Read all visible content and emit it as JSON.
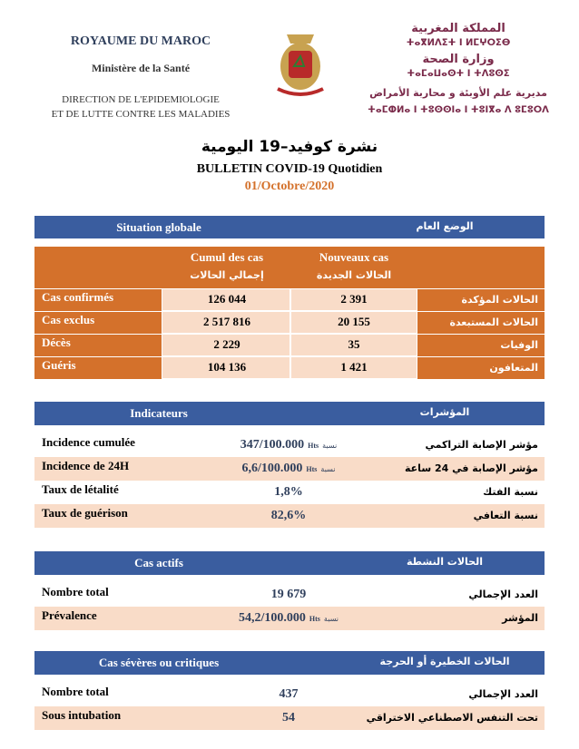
{
  "header": {
    "left": [
      "ROYAUME DU MAROC",
      "Ministère de la Santé",
      "DIRECTION DE L'EPIDEMIOLOGIE",
      "ET DE LUTTE CONTRE LES MALADIES"
    ],
    "right": [
      "المملكة المغربية",
      "ⵜⴰⴳⵍⴷⵉⵜ ⵏ ⵍⵎⵖⵔⵉⴱ",
      "وزارة الصحة",
      "ⵜⴰⵎⴰⵡⴰⵙⵜ ⵏ ⵜⴷⵓⵙⵉ",
      "مديرية علم الأوبئة و محاربة الأمراض",
      "ⵜⴰⵎⵀⵍⴰ ⵏ ⵜⵓⵙⵙⵏⴰ ⵏ ⵜⵓⵏⴳⴰ ⴷ ⵓⵎⵓⵔⴷ"
    ],
    "title_ar": "نشرة كوفيد–19 اليومية",
    "title_fr": "BULLETIN COVID-19 Quotidien",
    "date": "01/Octobre/2020"
  },
  "situation": {
    "title_fr": "Situation globale",
    "title_ar": "الوضع العام",
    "columns": [
      {
        "fr": "Cumul des cas",
        "ar": "إجمالي الحالات"
      },
      {
        "fr": "Nouveaux cas",
        "ar": "الحالات الجديدة"
      }
    ],
    "rows": [
      {
        "fr": "Cas confirmés",
        "values": [
          "126 044",
          "2 391"
        ],
        "ar": "الحالات المؤكدة"
      },
      {
        "fr": "Cas exclus",
        "values": [
          "2 517 816",
          "20 155"
        ],
        "ar": "الحالات المستبعدة"
      },
      {
        "fr": "Décès",
        "values": [
          "2 229",
          "35"
        ],
        "ar": "الوفيات"
      },
      {
        "fr": "Guéris",
        "values": [
          "104 136",
          "1 421"
        ],
        "ar": "المتعافون"
      }
    ]
  },
  "sections": [
    {
      "title_fr": "Indicateurs",
      "title_ar": "المؤشرات",
      "rows": [
        {
          "fr": "Incidence cumulée",
          "value": "347/100.000",
          "unit": "Hts",
          "unit_ar": "نسبة",
          "ar": "مؤشر الإصابة التراكمي"
        },
        {
          "fr": "Incidence de 24H",
          "value": "6,6/100.000",
          "unit": "Hts",
          "unit_ar": "نسبة",
          "ar": "مؤشر الإصابة في 24 ساعة"
        },
        {
          "fr": "Taux de létalité",
          "value": "1,8%",
          "ar": "نسبة الفتك"
        },
        {
          "fr": "Taux de guérison",
          "value": "82,6%",
          "ar": "نسبة التعافي"
        }
      ]
    },
    {
      "title_fr": "Cas actifs",
      "title_ar": "الحالات النشطة",
      "rows": [
        {
          "fr": "Nombre total",
          "value": "19 679",
          "ar": "العدد الإجمالي"
        },
        {
          "fr": "Prévalence",
          "value": "54,2/100.000",
          "unit": "Hts",
          "unit_ar": "نسبة",
          "ar": "المؤشر"
        }
      ]
    },
    {
      "title_fr": "Cas sévères ou critiques",
      "title_ar": "الحالات الخطيرة أو الحرجة",
      "rows": [
        {
          "fr": "Nombre total",
          "value": "437",
          "ar": "العدد الإجمالي"
        },
        {
          "fr": "Sous intubation",
          "value": "54",
          "ar": "تحت التنفس الاصطناعي الاختراقي"
        }
      ]
    }
  ]
}
